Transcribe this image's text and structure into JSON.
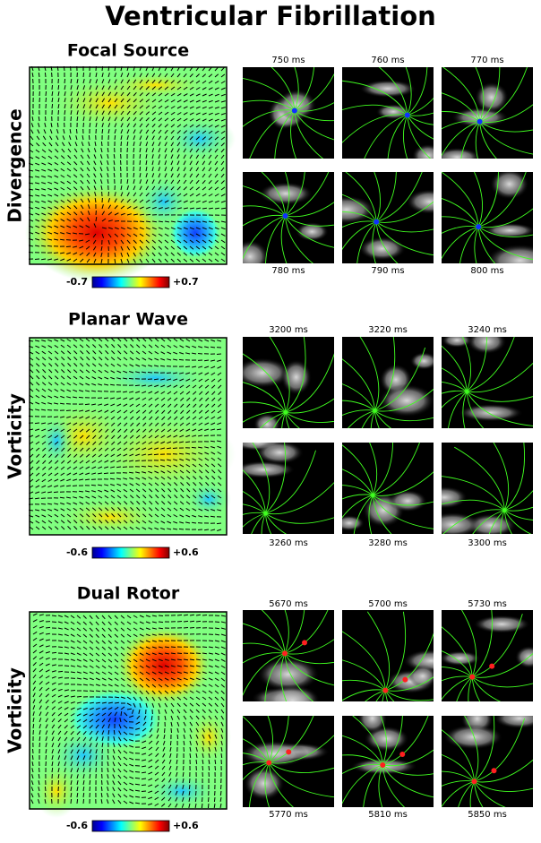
{
  "title": "Ventricular Fibrillation",
  "panels": [
    {
      "title": "Focal Source",
      "ylabel": "Divergence",
      "colorbar": {
        "min": "-0.7",
        "max": "+0.7"
      },
      "frames": [
        "750 ms",
        "760 ms",
        "770 ms",
        "780 ms",
        "790 ms",
        "800 ms"
      ]
    },
    {
      "title": "Planar Wave",
      "ylabel": "Vorticity",
      "colorbar": {
        "min": "-0.6",
        "max": "+0.6"
      },
      "frames": [
        "3200 ms",
        "3220 ms",
        "3240 ms",
        "3260 ms",
        "3280 ms",
        "3300 ms"
      ]
    },
    {
      "title": "Dual Rotor",
      "ylabel": "Vorticity",
      "colorbar": {
        "min": "-0.6",
        "max": "+0.6"
      },
      "frames": [
        "5670 ms",
        "5700 ms",
        "5730 ms",
        "5770 ms",
        "5810 ms",
        "5850 ms"
      ]
    }
  ]
}
